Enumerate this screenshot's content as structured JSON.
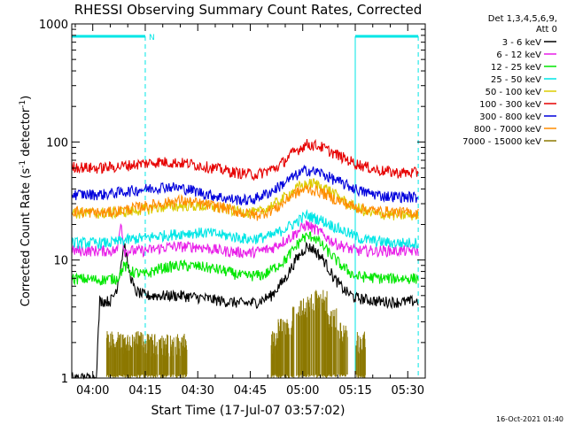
{
  "chart_data": {
    "type": "line",
    "title": "RHESSI Observing Summary Count Rates, Corrected",
    "xlabel": "Start Time (17-Jul-07 03:57:02)",
    "ylabel_parts": [
      "Corrected Count Rate (s",
      "-1",
      " detector",
      "-1",
      ")"
    ],
    "yscale": "log",
    "xlim": [
      -3,
      98
    ],
    "ylim": [
      1,
      1000
    ],
    "x_unit": "minutes after 03:57:02",
    "x_ticks": [
      {
        "value": 3,
        "label": "04:00"
      },
      {
        "value": 18,
        "label": "04:15"
      },
      {
        "value": 33,
        "label": "04:30"
      },
      {
        "value": 48,
        "label": "04:45"
      },
      {
        "value": 63,
        "label": "05:00"
      },
      {
        "value": 78,
        "label": "05:15"
      },
      {
        "value": 93,
        "label": "05:30"
      }
    ],
    "y_ticks": [
      {
        "value": 1,
        "label": "1"
      },
      {
        "value": 10,
        "label": "10"
      },
      {
        "value": 100,
        "label": "100"
      },
      {
        "value": 1000,
        "label": "1000"
      }
    ],
    "legend": {
      "position": "right",
      "header": [
        "Det 1,3,4,5,6,9,",
        "Att 0"
      ],
      "entries": [
        {
          "label": "3 - 6 keV",
          "color": "#000000"
        },
        {
          "label": "6 - 12 keV",
          "color": "#e81ee8"
        },
        {
          "label": "12 - 25 keV",
          "color": "#00e600"
        },
        {
          "label": "25 - 50 keV",
          "color": "#00e6e6"
        },
        {
          "label": "50 - 100 keV",
          "color": "#dccc00"
        },
        {
          "label": "100 - 300 keV",
          "color": "#e60000"
        },
        {
          "label": "300 - 800 keV",
          "color": "#0000dc"
        },
        {
          "label": "800 - 7000 keV",
          "color": "#ff8c00"
        },
        {
          "label": "7000 - 15000 keV",
          "color": "#8c7800"
        }
      ]
    },
    "night_intervals": [
      [
        -3,
        18
      ],
      [
        78,
        96
      ]
    ],
    "saa_marker": {
      "x": 18,
      "label": "N"
    },
    "series": [
      {
        "name": "3 - 6 keV",
        "color": "#000000",
        "points": [
          [
            -3,
            1
          ],
          [
            4,
            1
          ],
          [
            5,
            4.5
          ],
          [
            8,
            4.5
          ],
          [
            9,
            5
          ],
          [
            10,
            6
          ],
          [
            11,
            9
          ],
          [
            12,
            14
          ],
          [
            13,
            9
          ],
          [
            15,
            5.5
          ],
          [
            18,
            5
          ],
          [
            22,
            5
          ],
          [
            28,
            5
          ],
          [
            34,
            4.8
          ],
          [
            40,
            4.5
          ],
          [
            46,
            4.3
          ],
          [
            50,
            4.4
          ],
          [
            54,
            5
          ],
          [
            58,
            7
          ],
          [
            61,
            10
          ],
          [
            64,
            13
          ],
          [
            66,
            12.5
          ],
          [
            69,
            10
          ],
          [
            72,
            7
          ],
          [
            75,
            5.5
          ],
          [
            78,
            4.8
          ],
          [
            84,
            4.5
          ],
          [
            90,
            4.4
          ],
          [
            96,
            4.5
          ]
        ]
      },
      {
        "name": "6 - 12 keV",
        "color": "#e81ee8",
        "points": [
          [
            -3,
            12
          ],
          [
            5,
            12
          ],
          [
            10,
            12
          ],
          [
            11,
            22
          ],
          [
            12,
            12
          ],
          [
            18,
            12
          ],
          [
            25,
            13
          ],
          [
            33,
            13
          ],
          [
            40,
            12
          ],
          [
            48,
            11.5
          ],
          [
            54,
            12.5
          ],
          [
            60,
            16
          ],
          [
            64,
            20
          ],
          [
            67,
            18
          ],
          [
            72,
            14
          ],
          [
            78,
            12
          ],
          [
            86,
            12
          ],
          [
            96,
            12
          ]
        ]
      },
      {
        "name": "12 - 25 keV",
        "color": "#00e600",
        "points": [
          [
            -3,
            7
          ],
          [
            5,
            6.8
          ],
          [
            10,
            7
          ],
          [
            12,
            9
          ],
          [
            14,
            8
          ],
          [
            18,
            7.5
          ],
          [
            22,
            8.5
          ],
          [
            28,
            9
          ],
          [
            34,
            8.8
          ],
          [
            40,
            8.2
          ],
          [
            46,
            7.3
          ],
          [
            52,
            7.5
          ],
          [
            58,
            10
          ],
          [
            63,
            15.5
          ],
          [
            66,
            16
          ],
          [
            70,
            12
          ],
          [
            74,
            9
          ],
          [
            78,
            7.3
          ],
          [
            86,
            7
          ],
          [
            96,
            7
          ]
        ]
      },
      {
        "name": "25 - 50 keV",
        "color": "#00e6e6",
        "points": [
          [
            -3,
            14
          ],
          [
            8,
            14
          ],
          [
            14,
            15
          ],
          [
            22,
            16
          ],
          [
            30,
            17
          ],
          [
            36,
            17
          ],
          [
            42,
            16
          ],
          [
            48,
            15
          ],
          [
            54,
            16
          ],
          [
            60,
            20
          ],
          [
            64,
            24
          ],
          [
            68,
            22
          ],
          [
            74,
            18
          ],
          [
            80,
            15
          ],
          [
            88,
            14
          ],
          [
            96,
            14
          ]
        ]
      },
      {
        "name": "50 - 100 keV",
        "color": "#dccc00",
        "points": [
          [
            -3,
            25
          ],
          [
            8,
            25
          ],
          [
            14,
            26
          ],
          [
            22,
            28
          ],
          [
            30,
            29
          ],
          [
            38,
            28
          ],
          [
            44,
            26
          ],
          [
            50,
            25
          ],
          [
            56,
            31
          ],
          [
            62,
            42
          ],
          [
            66,
            45
          ],
          [
            70,
            40
          ],
          [
            76,
            30
          ],
          [
            82,
            25
          ],
          [
            90,
            24
          ],
          [
            96,
            24
          ]
        ]
      },
      {
        "name": "100 - 300 keV",
        "color": "#e60000",
        "points": [
          [
            -3,
            62
          ],
          [
            4,
            60
          ],
          [
            10,
            62
          ],
          [
            16,
            65
          ],
          [
            22,
            68
          ],
          [
            30,
            66
          ],
          [
            38,
            60
          ],
          [
            44,
            55
          ],
          [
            50,
            53
          ],
          [
            56,
            62
          ],
          [
            60,
            80
          ],
          [
            64,
            96
          ],
          [
            68,
            92
          ],
          [
            72,
            80
          ],
          [
            78,
            66
          ],
          [
            84,
            58
          ],
          [
            90,
            55
          ],
          [
            96,
            55
          ]
        ]
      },
      {
        "name": "300 - 800 keV",
        "color": "#0000dc",
        "points": [
          [
            -3,
            36
          ],
          [
            6,
            36
          ],
          [
            12,
            38
          ],
          [
            18,
            40
          ],
          [
            24,
            42
          ],
          [
            30,
            40
          ],
          [
            36,
            36
          ],
          [
            42,
            33
          ],
          [
            48,
            32
          ],
          [
            54,
            38
          ],
          [
            60,
            50
          ],
          [
            64,
            58
          ],
          [
            68,
            55
          ],
          [
            74,
            45
          ],
          [
            80,
            38
          ],
          [
            86,
            35
          ],
          [
            96,
            34
          ]
        ]
      },
      {
        "name": "800 - 7000 keV",
        "color": "#ff8c00",
        "points": [
          [
            -3,
            26
          ],
          [
            6,
            25
          ],
          [
            10,
            26
          ],
          [
            16,
            28
          ],
          [
            22,
            30
          ],
          [
            28,
            32
          ],
          [
            34,
            30
          ],
          [
            40,
            28
          ],
          [
            46,
            25
          ],
          [
            50,
            24
          ],
          [
            56,
            28
          ],
          [
            60,
            36
          ],
          [
            64,
            40
          ],
          [
            68,
            38
          ],
          [
            72,
            33
          ],
          [
            78,
            28
          ],
          [
            84,
            26
          ],
          [
            96,
            25
          ]
        ]
      }
    ],
    "bursts": {
      "name": "7000 - 15000 keV",
      "color": "#8c7800",
      "baseline": 1,
      "segments": [
        {
          "x": [
            7,
            18
          ],
          "level": 2
        },
        {
          "x": [
            18,
            30
          ],
          "level": 1.9
        },
        {
          "x": [
            54,
            56
          ],
          "level": 2
        },
        {
          "x": [
            56,
            60
          ],
          "level": 2.6
        },
        {
          "x": [
            60,
            62
          ],
          "level": 3.3
        },
        {
          "x": [
            62,
            65
          ],
          "level": 4.0
        },
        {
          "x": [
            65,
            70
          ],
          "level": 4.5
        },
        {
          "x": [
            70,
            73
          ],
          "level": 3.2
        },
        {
          "x": [
            73,
            76
          ],
          "level": 2.4
        },
        {
          "x": [
            78,
            81
          ],
          "level": 2.0
        }
      ]
    }
  },
  "footer_timestamp": "16-Oct-2021 01:40"
}
